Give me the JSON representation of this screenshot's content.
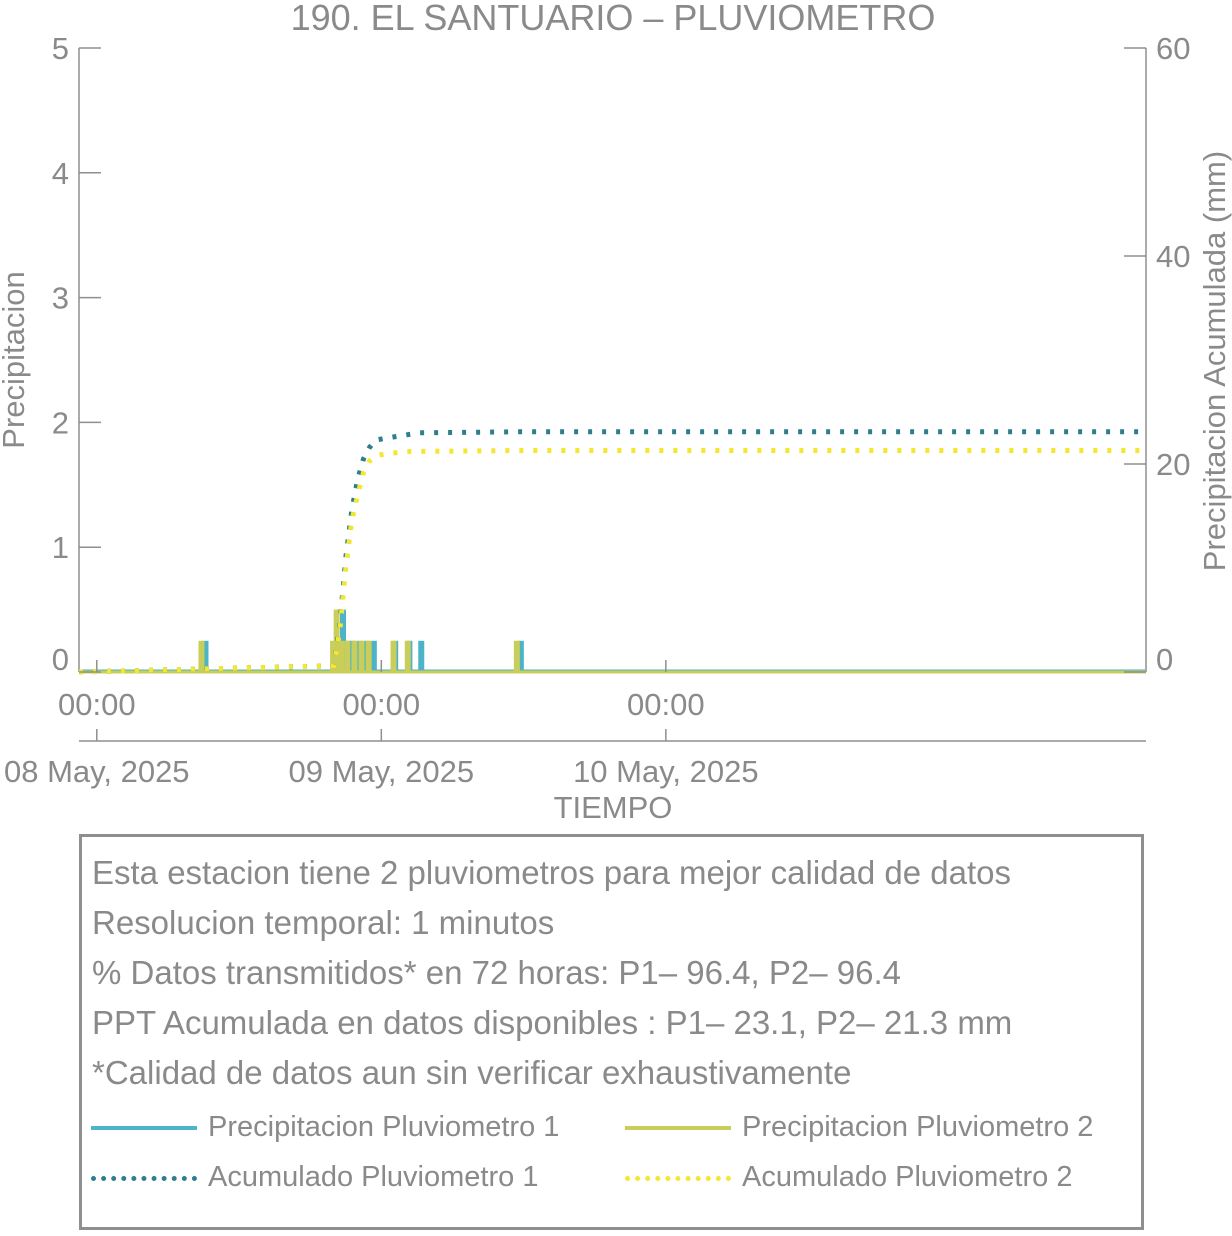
{
  "chart_data": {
    "type": "bar",
    "title": "190. EL SANTUARIO – PLUVIOMETRO",
    "xlabel": "TIEMPO",
    "ylabel_left": "Precipitacion",
    "ylabel_right": "Precipitacion Acumulada (mm)",
    "ylim_left": [
      0,
      5
    ],
    "ylim_right": [
      0,
      60
    ],
    "yticks_left": [
      0,
      1,
      2,
      3,
      4,
      5
    ],
    "yticks_right": [
      0,
      20,
      40,
      60
    ],
    "x_range_hours": [
      -1.5,
      88.5
    ],
    "x_ticks": [
      {
        "hour": 0,
        "time": "00:00",
        "date": "08 May, 2025"
      },
      {
        "hour": 24,
        "time": "00:00",
        "date": "09 May, 2025"
      },
      {
        "hour": 48,
        "time": "00:00",
        "date": "10 May, 2025"
      }
    ],
    "grid": false,
    "series": [
      {
        "name": "Precipitacion Pluviometro 1",
        "axis": "left",
        "color": "#4db3c8",
        "style": "bar",
        "points": [
          [
            9.0,
            0.25
          ],
          [
            20.3,
            0.25
          ],
          [
            20.6,
            0.5
          ],
          [
            21.0,
            0.25
          ],
          [
            21.4,
            0.25
          ],
          [
            22.0,
            0.25
          ],
          [
            22.6,
            0.25
          ],
          [
            23.2,
            0.25
          ],
          [
            25.0,
            0.25
          ],
          [
            26.2,
            0.25
          ],
          [
            27.2,
            0.25
          ],
          [
            35.6,
            0.25
          ]
        ]
      },
      {
        "name": "Precipitacion Pluviometro 2",
        "axis": "left",
        "color": "#c9ce5a",
        "style": "bar",
        "points": [
          [
            9.0,
            0.25
          ],
          [
            20.1,
            0.25
          ],
          [
            20.4,
            0.5
          ],
          [
            20.8,
            0.25
          ],
          [
            21.3,
            0.25
          ],
          [
            21.9,
            0.25
          ],
          [
            22.5,
            0.25
          ],
          [
            23.1,
            0.25
          ],
          [
            25.2,
            0.25
          ],
          [
            26.4,
            0.25
          ],
          [
            35.6,
            0.25
          ]
        ]
      },
      {
        "name": "Acumulado Pluviometro 1",
        "axis": "right",
        "color": "#2e7e8f",
        "style": "dotted",
        "points": [
          [
            -1.5,
            0
          ],
          [
            9.0,
            0.3
          ],
          [
            20.0,
            0.6
          ],
          [
            20.5,
            4.5
          ],
          [
            21.0,
            11
          ],
          [
            21.5,
            15.5
          ],
          [
            22.0,
            18.5
          ],
          [
            22.5,
            20.5
          ],
          [
            23.0,
            21.6
          ],
          [
            23.5,
            22.3
          ],
          [
            24.5,
            22.5
          ],
          [
            27.2,
            23.0
          ],
          [
            35.6,
            23.1
          ],
          [
            88.5,
            23.1
          ]
        ]
      },
      {
        "name": "Acumulado Pluviometro 2",
        "axis": "right",
        "color": "#f5e62e",
        "style": "dotted",
        "points": [
          [
            -1.5,
            0
          ],
          [
            9.0,
            0.3
          ],
          [
            20.0,
            0.6
          ],
          [
            20.5,
            4.0
          ],
          [
            21.0,
            10
          ],
          [
            21.5,
            14.5
          ],
          [
            22.0,
            17.0
          ],
          [
            22.5,
            19.2
          ],
          [
            23.0,
            20.3
          ],
          [
            23.5,
            20.8
          ],
          [
            24.5,
            21.0
          ],
          [
            26.4,
            21.2
          ],
          [
            35.6,
            21.3
          ],
          [
            88.5,
            21.3
          ]
        ]
      }
    ]
  },
  "info": {
    "lines": [
      "Esta estacion tiene 2 pluviometros para mejor calidad de datos",
      "Resolucion temporal: 1 minutos",
      "% Datos transmitidos* en 72 horas: P1– 96.4, P2– 96.4",
      "PPT Acumulada en datos disponibles : P1– 23.1, P2– 21.3 mm",
      "*Calidad de datos aun sin verificar exhaustivamente"
    ],
    "legend": [
      {
        "label": "Precipitacion Pluviometro 1",
        "color": "#4db3c8",
        "style": "solid"
      },
      {
        "label": "Precipitacion Pluviometro 2",
        "color": "#c9ce5a",
        "style": "solid"
      },
      {
        "label": "Acumulado Pluviometro 1",
        "color": "#2e7e8f",
        "style": "dotted"
      },
      {
        "label": "Acumulado Pluviometro 2",
        "color": "#f5e62e",
        "style": "dotted"
      }
    ]
  }
}
